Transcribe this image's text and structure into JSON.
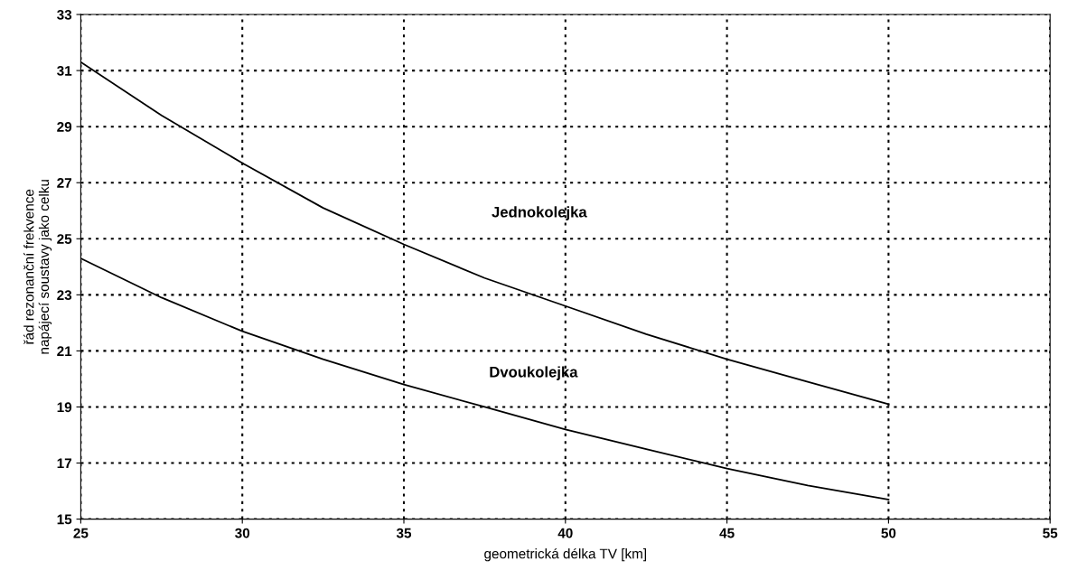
{
  "chart_data": {
    "type": "line",
    "xlabel": "geometrická délka TV [km]",
    "ylabel": "řád rezonanční frekvence\nnapájecí soustavy jako celku",
    "series": [
      {
        "color": "#000000",
        "x": [
          25,
          27.5,
          30,
          32.5,
          35,
          37.5,
          40,
          42.5,
          45,
          47.5,
          50
        ],
        "values": [
          31.3,
          29.4,
          27.7,
          26.1,
          24.8,
          23.6,
          22.6,
          21.6,
          20.7,
          19.9,
          19.1
        ]
      },
      {
        "color": "#000000",
        "x": [
          25,
          27.5,
          30,
          32.5,
          35,
          37.5,
          40,
          42.5,
          45,
          47.5,
          50
        ],
        "values": [
          24.3,
          22.9,
          21.7,
          20.7,
          19.8,
          19.0,
          18.2,
          17.5,
          16.8,
          16.2,
          15.7
        ]
      }
    ],
    "annotations": [
      "Jednokolejka",
      "Dvoukolejka"
    ],
    "xlim": [
      25,
      55
    ],
    "xticks": [
      25,
      30,
      35,
      40,
      45,
      50,
      55
    ],
    "ylim": [
      15,
      33
    ],
    "yticks": [
      15,
      17,
      19,
      21,
      23,
      25,
      27,
      29,
      31,
      33
    ],
    "grid": true,
    "line_style": "solid",
    "marker": "none",
    "legend": false
  }
}
